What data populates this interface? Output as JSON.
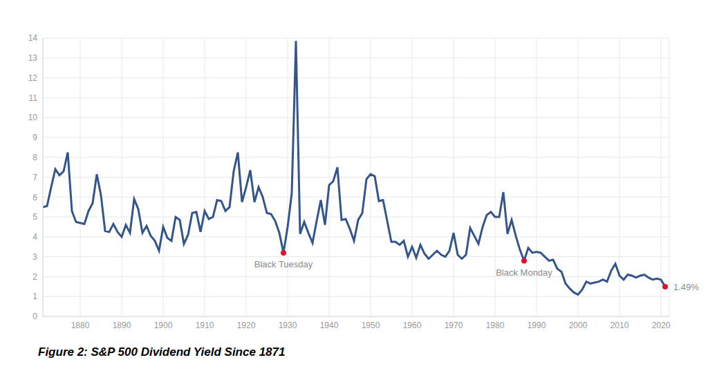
{
  "chart_data": {
    "type": "line",
    "title": "Figure 2: S&P 500 Dividend Yield Since 1871",
    "x": [
      1871,
      1872,
      1873,
      1874,
      1875,
      1876,
      1877,
      1878,
      1879,
      1880,
      1881,
      1882,
      1883,
      1884,
      1885,
      1886,
      1887,
      1888,
      1889,
      1890,
      1891,
      1892,
      1893,
      1894,
      1895,
      1896,
      1897,
      1898,
      1899,
      1900,
      1901,
      1902,
      1903,
      1904,
      1905,
      1906,
      1907,
      1908,
      1909,
      1910,
      1911,
      1912,
      1913,
      1914,
      1915,
      1916,
      1917,
      1918,
      1919,
      1920,
      1921,
      1922,
      1923,
      1924,
      1925,
      1926,
      1927,
      1928,
      1929,
      1930,
      1931,
      1932,
      1933,
      1934,
      1935,
      1936,
      1937,
      1938,
      1939,
      1940,
      1941,
      1942,
      1943,
      1944,
      1945,
      1946,
      1947,
      1948,
      1949,
      1950,
      1951,
      1952,
      1953,
      1954,
      1955,
      1956,
      1957,
      1958,
      1959,
      1960,
      1961,
      1962,
      1963,
      1964,
      1965,
      1966,
      1967,
      1968,
      1969,
      1970,
      1971,
      1972,
      1973,
      1974,
      1975,
      1976,
      1977,
      1978,
      1979,
      1980,
      1981,
      1982,
      1983,
      1984,
      1985,
      1986,
      1987,
      1988,
      1989,
      1990,
      1991,
      1992,
      1993,
      1994,
      1995,
      1996,
      1997,
      1998,
      1999,
      2000,
      2001,
      2002,
      2003,
      2004,
      2005,
      2006,
      2007,
      2008,
      2009,
      2010,
      2011,
      2012,
      2013,
      2014,
      2015,
      2016,
      2017,
      2018,
      2019,
      2020,
      2021
    ],
    "values": [
      5.5,
      5.55,
      6.5,
      7.4,
      7.1,
      7.3,
      8.25,
      5.3,
      4.75,
      4.7,
      4.65,
      5.3,
      5.7,
      7.15,
      6.1,
      4.3,
      4.25,
      4.65,
      4.25,
      4.0,
      4.6,
      4.2,
      5.9,
      5.4,
      4.2,
      4.55,
      4.05,
      3.8,
      3.3,
      4.5,
      3.95,
      3.8,
      5.0,
      4.85,
      3.65,
      4.1,
      5.2,
      5.25,
      4.25,
      5.3,
      4.9,
      5.0,
      5.85,
      5.8,
      5.3,
      5.5,
      7.3,
      8.25,
      5.75,
      6.5,
      7.35,
      5.75,
      6.5,
      6.0,
      5.2,
      5.15,
      4.8,
      4.2,
      3.2,
      4.5,
      6.2,
      13.85,
      4.15,
      4.75,
      4.2,
      3.7,
      4.8,
      5.85,
      4.6,
      6.6,
      6.8,
      7.5,
      4.85,
      4.9,
      4.4,
      3.8,
      4.85,
      5.2,
      6.9,
      7.15,
      7.05,
      5.8,
      5.85,
      4.8,
      3.75,
      3.75,
      3.6,
      3.8,
      3.0,
      3.5,
      2.95,
      3.6,
      3.15,
      2.9,
      3.1,
      3.3,
      3.1,
      3.0,
      3.3,
      4.2,
      3.1,
      2.9,
      3.1,
      4.45,
      4.05,
      3.65,
      4.5,
      5.1,
      5.25,
      5.0,
      5.0,
      6.25,
      4.15,
      4.85,
      4.05,
      3.35,
      2.8,
      3.45,
      3.2,
      3.25,
      3.2,
      3.0,
      2.8,
      2.85,
      2.4,
      2.25,
      1.65,
      1.4,
      1.2,
      1.1,
      1.35,
      1.75,
      1.65,
      1.7,
      1.75,
      1.85,
      1.75,
      2.3,
      2.65,
      2.05,
      1.85,
      2.1,
      2.05,
      1.95,
      2.05,
      2.1,
      1.95,
      1.85,
      1.9,
      1.85,
      1.49
    ],
    "color": "#34558b",
    "xlim": [
      1871,
      2022
    ],
    "xticks": [
      1880,
      1890,
      1900,
      1910,
      1920,
      1930,
      1940,
      1950,
      1960,
      1970,
      1980,
      1990,
      2000,
      2010,
      2020
    ],
    "ylim": [
      0,
      14
    ],
    "yticks": [
      0,
      1,
      2,
      3,
      4,
      5,
      6,
      7,
      8,
      9,
      10,
      11,
      12,
      13,
      14
    ],
    "grid": true,
    "annotations": [
      {
        "x": 1929,
        "y": 3.2,
        "label": "Black Tuesday"
      },
      {
        "x": 1987,
        "y": 2.8,
        "label": "Black Monday"
      },
      {
        "x": 2021,
        "y": 1.49,
        "label": "1.49%"
      }
    ]
  }
}
